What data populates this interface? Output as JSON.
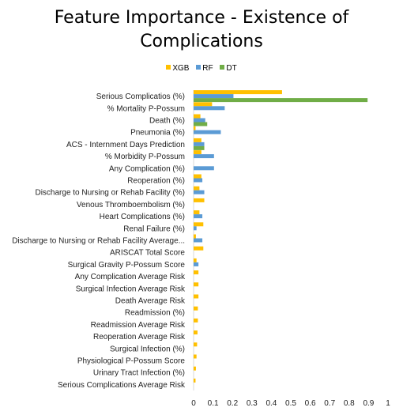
{
  "chart_data": {
    "type": "bar",
    "orientation": "horizontal",
    "title_line1": "Feature Importance - Existence of",
    "title_line2": "Complications",
    "legend_position": "top",
    "grid": false,
    "xlim": [
      0,
      1
    ],
    "x_ticks": [
      "0",
      "0.1",
      "0.2",
      "0.3",
      "0.4",
      "0.5",
      "0.6",
      "0.7",
      "0.8",
      "0.9",
      "1"
    ],
    "categories": [
      "Serious Complicatios (%)",
      "% Mortality P-Possum",
      "Death (%)",
      "Pneumonia (%)",
      "ACS - Internment Days Prediction",
      "% Morbidity P-Possum",
      "Any Complication (%)",
      "Reoperation (%)",
      "Discharge to Nursing or Rehab Facility (%)",
      "Venous Thromboembolism (%)",
      "Heart Complications (%)",
      "Renal Failure (%)",
      "Discharge to Nursing or Rehab Facility Average...",
      "ARISCAT Total Score",
      "Surgical Gravity P-Possum Score",
      "Any Complication Average Risk",
      "Surgical Infection Average Risk",
      "Death Average Risk",
      "Readmission (%)",
      "Readmission Average Risk",
      "Reoperation Average Risk",
      "Surgical Infection (%)",
      "Physiological P-Possum Score",
      "Urinary Tract Infection (%)",
      "Serious Complications Average Risk"
    ],
    "series": [
      {
        "name": "XGB",
        "color": "#FFC000",
        "values": [
          0.455,
          0.095,
          0.035,
          0.01,
          0.04,
          0.04,
          0.0,
          0.04,
          0.03,
          0.055,
          0.03,
          0.05,
          0.012,
          0.05,
          0.015,
          0.025,
          0.025,
          0.025,
          0.022,
          0.022,
          0.02,
          0.018,
          0.015,
          0.012,
          0.01
        ]
      },
      {
        "name": "RF",
        "color": "#5B9BD5",
        "values": [
          0.205,
          0.16,
          0.06,
          0.14,
          0.055,
          0.105,
          0.105,
          0.045,
          0.055,
          0.0,
          0.045,
          0.015,
          0.045,
          0.0,
          0.025,
          0.0,
          0.0,
          0.0,
          0.0,
          0.0,
          0.0,
          0.0,
          0.0,
          0.0,
          0.0
        ]
      },
      {
        "name": "DT",
        "color": "#70AD47",
        "values": [
          0.895,
          0.0,
          0.07,
          0.0,
          0.055,
          0.0,
          0.0,
          0.0,
          0.0,
          0.0,
          0.0,
          0.0,
          0.0,
          0.0,
          0.0,
          0.0,
          0.0,
          0.0,
          0.0,
          0.0,
          0.0,
          0.0,
          0.0,
          0.0,
          0.0
        ]
      }
    ]
  }
}
